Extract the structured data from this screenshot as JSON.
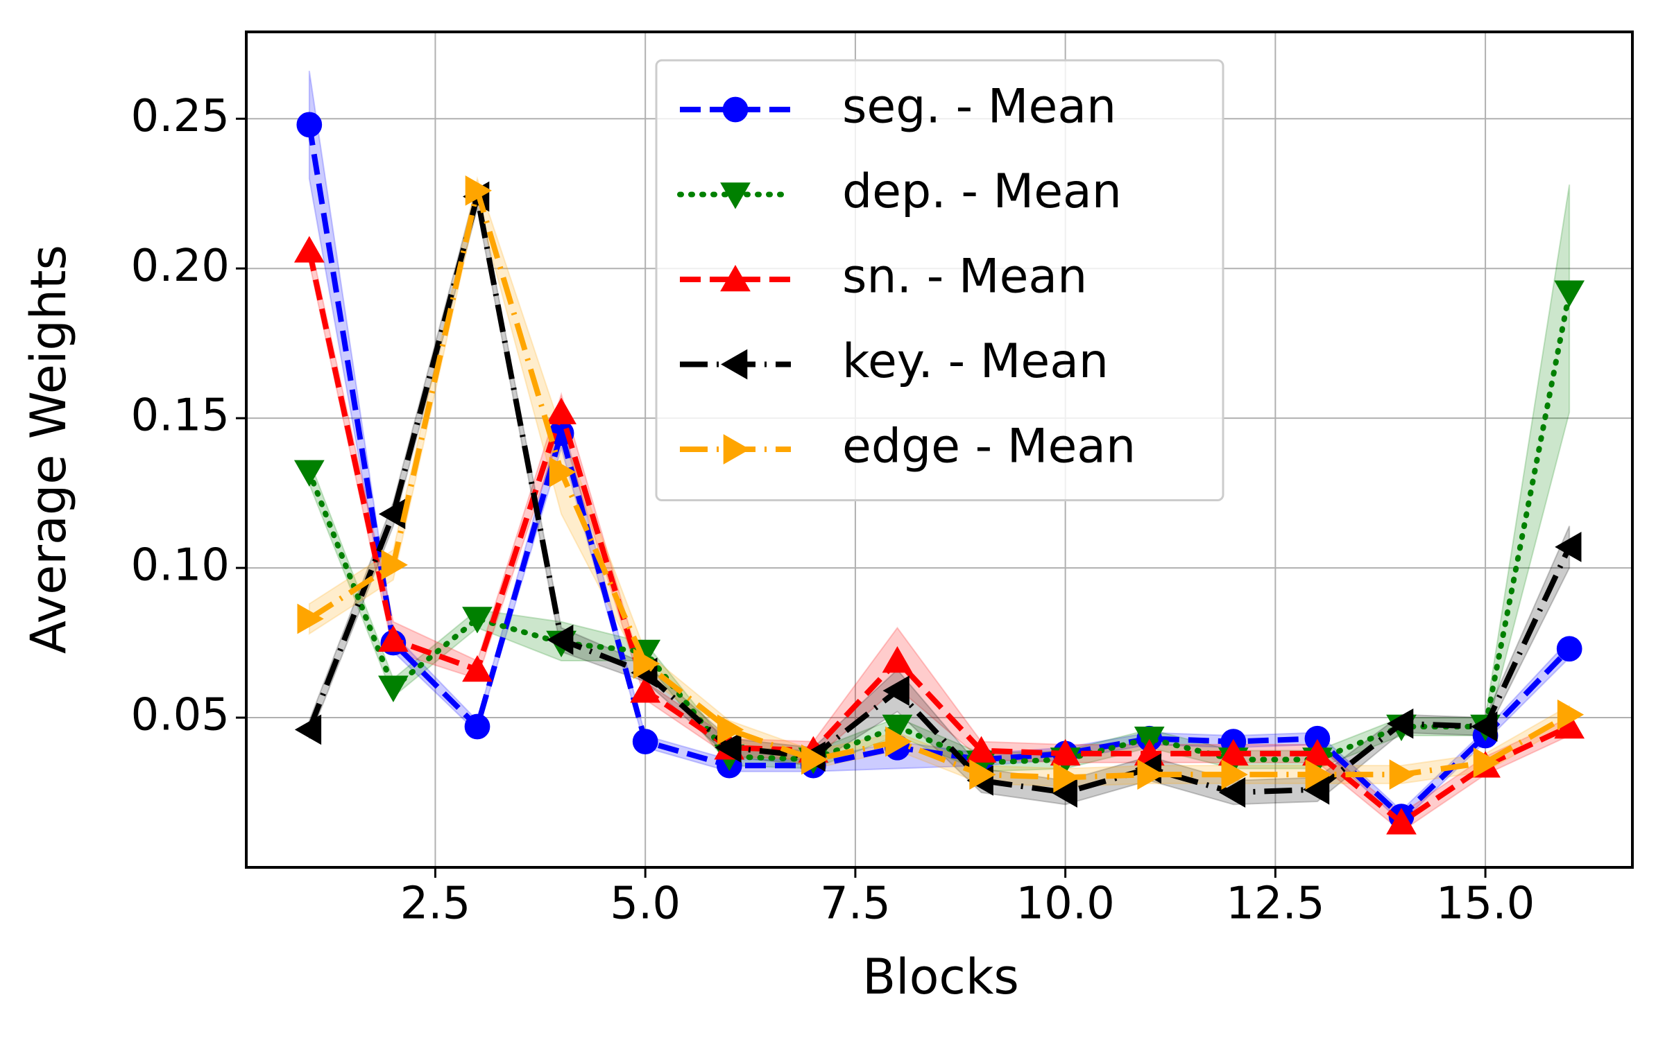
{
  "chart_data": {
    "type": "line",
    "x_label": "Blocks",
    "y_label": "Average Weights",
    "x": [
      1,
      2,
      3,
      4,
      5,
      6,
      7,
      8,
      9,
      10,
      11,
      12,
      13,
      14,
      15,
      16
    ],
    "xlim": [
      0.25,
      16.75
    ],
    "xticks": [
      2.5,
      {
        "value": 5,
        "label": "5.0"
      },
      7.5,
      {
        "value": 10,
        "label": "10.0"
      },
      12.5,
      {
        "value": 15,
        "label": "15.0"
      }
    ],
    "ylim": [
      0,
      0.279
    ],
    "yticks": [
      0.05,
      {
        "value": 0.1,
        "label": "0.10"
      },
      0.15,
      {
        "value": 0.2,
        "label": "0.20"
      },
      0.25
    ],
    "grid": true,
    "legend": "upper center",
    "series": [
      {
        "name": "seg. - Mean",
        "color": "#0000ff",
        "marker": "o",
        "linestyle": "dashed",
        "values": [
          0.248,
          0.075,
          0.047,
          0.145,
          0.042,
          0.034,
          0.034,
          0.04,
          0.036,
          0.038,
          0.043,
          0.042,
          0.043,
          0.017,
          0.044,
          0.073
        ],
        "lower": [
          0.23,
          0.072,
          0.045,
          0.14,
          0.04,
          0.032,
          0.032,
          0.033,
          0.034,
          0.036,
          0.041,
          0.04,
          0.041,
          0.015,
          0.042,
          0.07
        ],
        "upper": [
          0.266,
          0.078,
          0.049,
          0.15,
          0.044,
          0.036,
          0.036,
          0.042,
          0.038,
          0.04,
          0.045,
          0.044,
          0.045,
          0.019,
          0.046,
          0.076
        ]
      },
      {
        "name": "dep. - Mean",
        "color": "#008000",
        "marker": "v",
        "linestyle": "dotted",
        "values": [
          0.132,
          0.06,
          0.083,
          0.075,
          0.072,
          0.037,
          0.036,
          0.047,
          0.035,
          0.036,
          0.043,
          0.036,
          0.036,
          0.047,
          0.047,
          0.192
        ],
        "lower": [
          0.128,
          0.057,
          0.08,
          0.069,
          0.069,
          0.034,
          0.033,
          0.044,
          0.032,
          0.033,
          0.04,
          0.033,
          0.033,
          0.044,
          0.044,
          0.152
        ],
        "upper": [
          0.136,
          0.063,
          0.086,
          0.082,
          0.075,
          0.04,
          0.039,
          0.05,
          0.038,
          0.039,
          0.046,
          0.039,
          0.039,
          0.05,
          0.05,
          0.228
        ]
      },
      {
        "name": "sn. - Mean",
        "color": "#ff0000",
        "marker": "^",
        "linestyle": "dashed",
        "values": [
          0.206,
          0.076,
          0.066,
          0.152,
          0.059,
          0.04,
          0.039,
          0.069,
          0.039,
          0.038,
          0.038,
          0.038,
          0.038,
          0.015,
          0.034,
          0.047
        ],
        "lower": [
          0.202,
          0.072,
          0.063,
          0.146,
          0.056,
          0.037,
          0.036,
          0.06,
          0.036,
          0.035,
          0.035,
          0.035,
          0.035,
          0.012,
          0.031,
          0.044
        ],
        "upper": [
          0.21,
          0.082,
          0.069,
          0.158,
          0.062,
          0.043,
          0.042,
          0.08,
          0.042,
          0.041,
          0.041,
          0.041,
          0.041,
          0.018,
          0.037,
          0.05
        ]
      },
      {
        "name": "key. - Mean",
        "color": "#000000",
        "marker": "<",
        "linestyle": "dashdot",
        "values": [
          0.046,
          0.118,
          0.224,
          0.076,
          0.065,
          0.04,
          0.037,
          0.059,
          0.029,
          0.025,
          0.033,
          0.025,
          0.026,
          0.048,
          0.047,
          0.107
        ],
        "lower": [
          0.043,
          0.114,
          0.22,
          0.072,
          0.062,
          0.037,
          0.034,
          0.052,
          0.025,
          0.021,
          0.029,
          0.021,
          0.022,
          0.045,
          0.044,
          0.1
        ],
        "upper": [
          0.049,
          0.122,
          0.228,
          0.08,
          0.068,
          0.043,
          0.04,
          0.066,
          0.033,
          0.029,
          0.037,
          0.029,
          0.03,
          0.051,
          0.05,
          0.114
        ]
      },
      {
        "name": "edge - Mean",
        "color": "#ffa500",
        "marker": ">",
        "linestyle": "dashdot",
        "values": [
          0.083,
          0.101,
          0.226,
          0.132,
          0.068,
          0.046,
          0.036,
          0.042,
          0.031,
          0.03,
          0.031,
          0.031,
          0.031,
          0.031,
          0.035,
          0.051
        ],
        "lower": [
          0.078,
          0.096,
          0.222,
          0.118,
          0.064,
          0.043,
          0.033,
          0.039,
          0.028,
          0.027,
          0.028,
          0.028,
          0.028,
          0.028,
          0.032,
          0.048
        ],
        "upper": [
          0.088,
          0.106,
          0.23,
          0.146,
          0.072,
          0.049,
          0.039,
          0.045,
          0.034,
          0.033,
          0.034,
          0.034,
          0.034,
          0.034,
          0.038,
          0.054
        ]
      }
    ]
  }
}
